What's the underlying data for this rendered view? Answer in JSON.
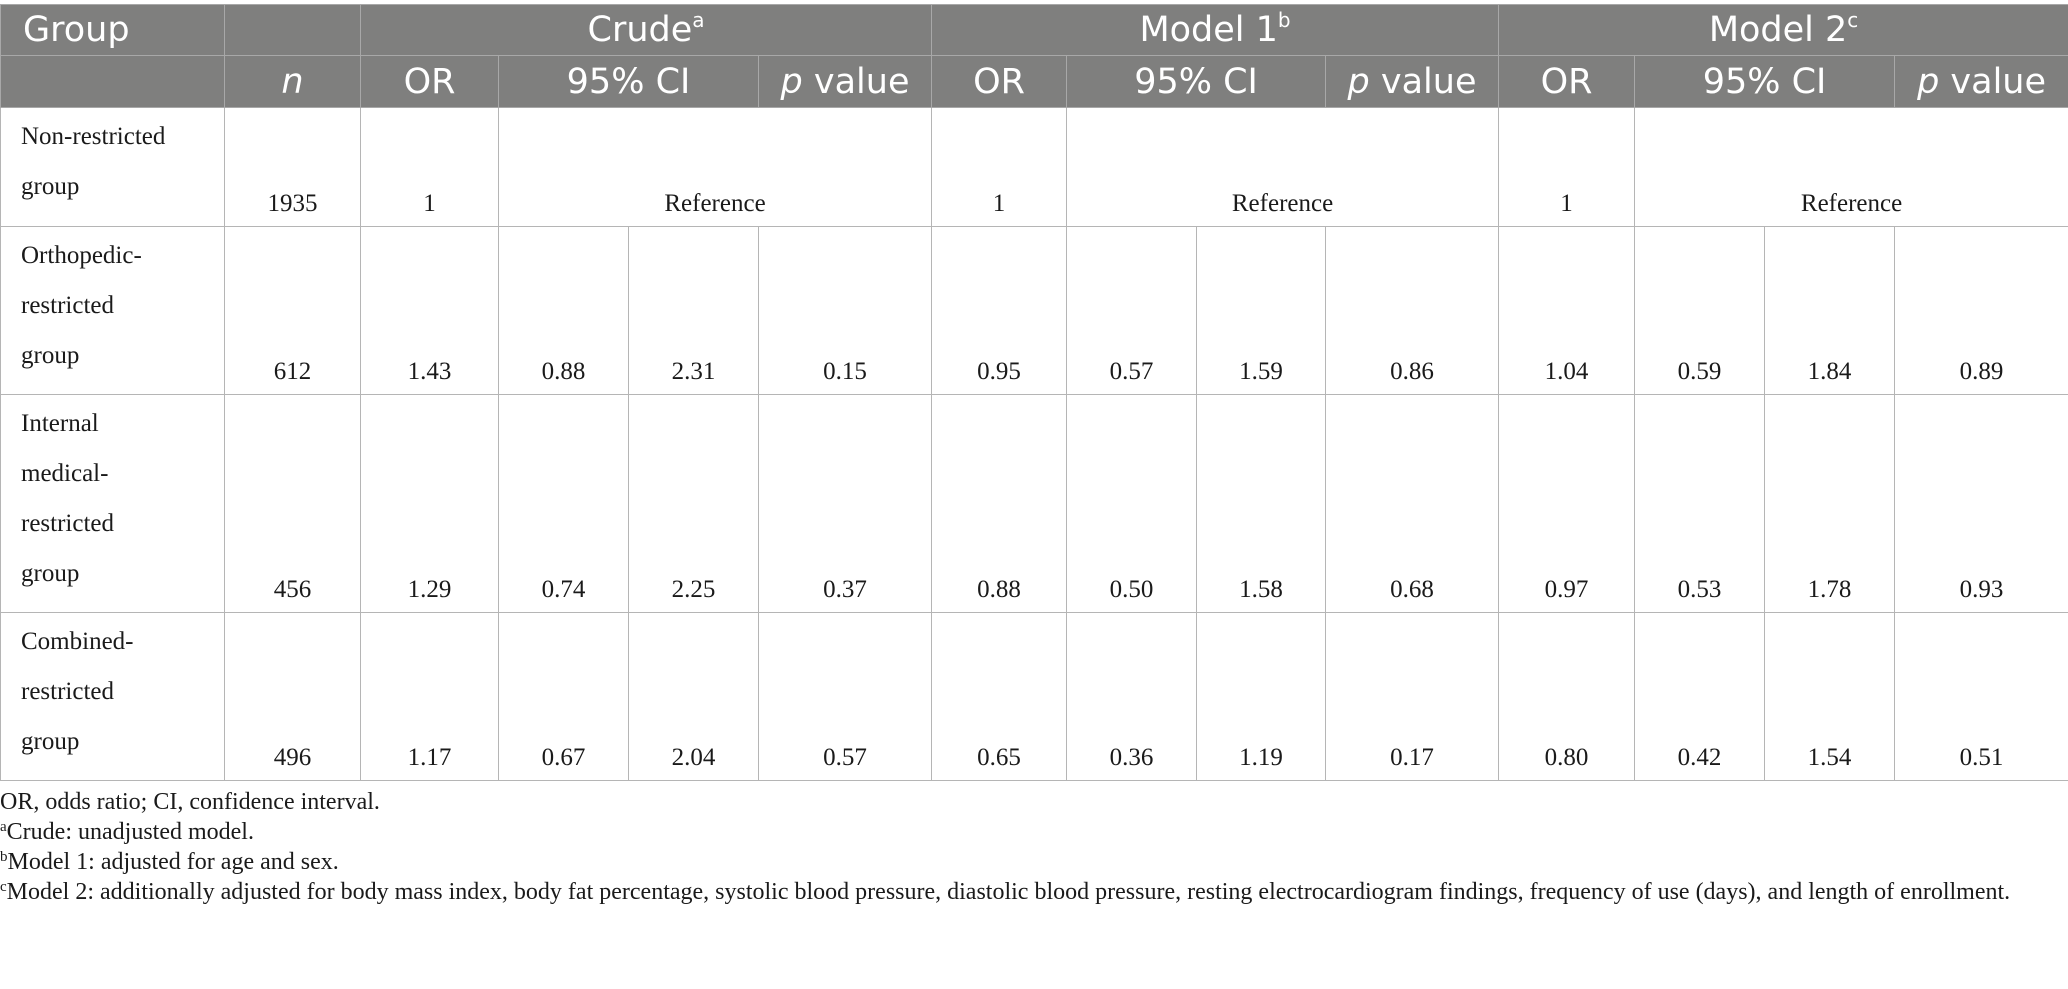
{
  "header": {
    "group": "Group",
    "n": "n",
    "models": [
      {
        "label": "Crude",
        "sup": "a"
      },
      {
        "label": "Model 1",
        "sup": "b"
      },
      {
        "label": "Model 2",
        "sup": "c"
      }
    ],
    "or": "OR",
    "ci": "95% CI",
    "p_italic": "p",
    "p_rest": " value"
  },
  "reference_label": "Reference",
  "rows": [
    {
      "group_lines": [
        "Non-restricted",
        "group"
      ],
      "n": "1935",
      "m": [
        {
          "or": "1"
        },
        {
          "or": "1"
        },
        {
          "or": "1"
        }
      ]
    },
    {
      "group_lines": [
        "Orthopedic-",
        "restricted",
        "group"
      ],
      "n": "612",
      "m": [
        {
          "or": "1.43",
          "lo": "0.88",
          "hi": "2.31",
          "p": "0.15"
        },
        {
          "or": "0.95",
          "lo": "0.57",
          "hi": "1.59",
          "p": "0.86"
        },
        {
          "or": "1.04",
          "lo": "0.59",
          "hi": "1.84",
          "p": "0.89"
        }
      ]
    },
    {
      "group_lines": [
        "Internal",
        "medical-",
        "restricted",
        "group"
      ],
      "n": "456",
      "m": [
        {
          "or": "1.29",
          "lo": "0.74",
          "hi": "2.25",
          "p": "0.37"
        },
        {
          "or": "0.88",
          "lo": "0.50",
          "hi": "1.58",
          "p": "0.68"
        },
        {
          "or": "0.97",
          "lo": "0.53",
          "hi": "1.78",
          "p": "0.93"
        }
      ]
    },
    {
      "group_lines": [
        "Combined-",
        "restricted",
        "group"
      ],
      "n": "496",
      "m": [
        {
          "or": "1.17",
          "lo": "0.67",
          "hi": "2.04",
          "p": "0.57"
        },
        {
          "or": "0.65",
          "lo": "0.36",
          "hi": "1.19",
          "p": "0.17"
        },
        {
          "or": "0.80",
          "lo": "0.42",
          "hi": "1.54",
          "p": "0.51"
        }
      ]
    }
  ],
  "notes": {
    "abbrev": "OR, odds ratio; CI, confidence interval.",
    "a_sup": "a",
    "a": "Crude: unadjusted model.",
    "b_sup": "b",
    "b": "Model 1: adjusted for age and sex.",
    "c_sup": "c",
    "c": "Model 2: additionally adjusted for body mass index, body fat percentage, systolic blood pressure, diastolic blood pressure, resting electrocardiogram findings, frequency of use (days), and length of enrollment."
  }
}
